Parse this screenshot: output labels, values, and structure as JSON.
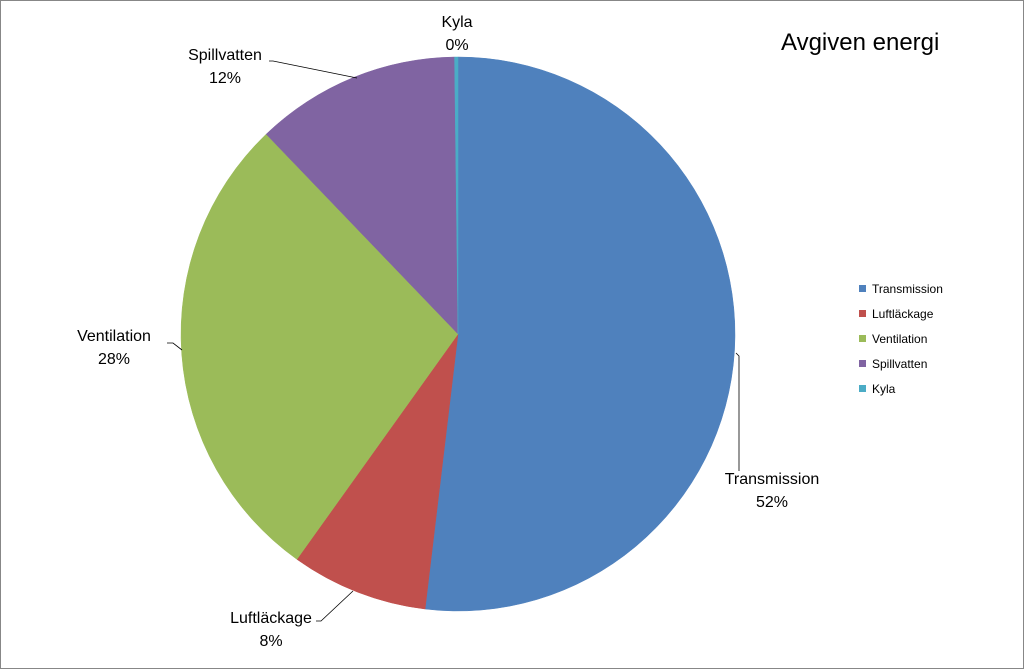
{
  "chart_data": {
    "type": "pie",
    "title": "Avgiven energi",
    "legend_position": "right",
    "slices": [
      {
        "label": "Transmission",
        "value": 52,
        "display": "52%",
        "color": "#4F81BD"
      },
      {
        "label": "Luftläckage",
        "value": 8,
        "display": "8%",
        "color": "#C0504D"
      },
      {
        "label": "Ventilation",
        "value": 28,
        "display": "28%",
        "color": "#9BBB59"
      },
      {
        "label": "Spillvatten",
        "value": 12,
        "display": "12%",
        "color": "#8064A2"
      },
      {
        "label": "Kyla",
        "value": 0.2,
        "display": "0%",
        "color": "#4BACC6"
      }
    ]
  }
}
